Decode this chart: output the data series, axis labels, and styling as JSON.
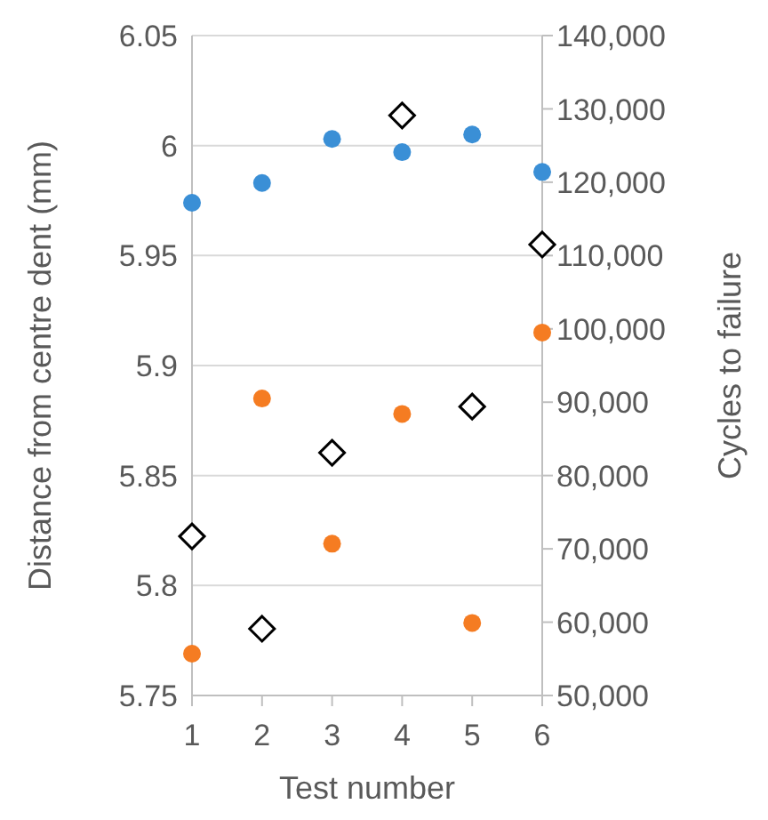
{
  "chart_data": {
    "type": "scatter",
    "xlabel": "Test number",
    "ylabel": "Distance from centre dent (mm)",
    "y2label": "Cycles to failure",
    "x": [
      1,
      2,
      3,
      4,
      5,
      6
    ],
    "series": [
      {
        "color": "#3a8fd6",
        "marker": "circle",
        "values": [
          5.974,
          5.983,
          6.003,
          5.997,
          6.005,
          5.988
        ]
      },
      {
        "color": "#f57c22",
        "marker": "circle",
        "values": [
          5.769,
          5.885,
          5.819,
          5.878,
          5.783,
          5.915
        ]
      },
      {
        "color": "#000000",
        "marker": "diamond",
        "axis": "y2",
        "values": [
          71700,
          59100,
          83100,
          129100,
          89400,
          111500
        ]
      }
    ],
    "xlim": [
      1,
      6
    ],
    "xticks": [
      1,
      2,
      3,
      4,
      5,
      6
    ],
    "ylim": [
      5.75,
      6.05
    ],
    "yticks": [
      5.75,
      5.8,
      5.85,
      5.9,
      5.95,
      6,
      6.05
    ],
    "y2lim": [
      50000,
      140000
    ],
    "y2ticks": [
      {
        "value": 50000,
        "label": "50,000"
      },
      {
        "value": 60000,
        "label": "60,000"
      },
      {
        "value": 70000,
        "label": "70,000"
      },
      {
        "value": 80000,
        "label": "80,000"
      },
      {
        "value": 90000,
        "label": "90,000"
      },
      {
        "value": 100000,
        "label": "100,000"
      },
      {
        "value": 110000,
        "label": "110,000"
      },
      {
        "value": 120000,
        "label": "120,000"
      },
      {
        "value": 130000,
        "label": "130,000"
      },
      {
        "value": 140000,
        "label": "140,000"
      }
    ],
    "grid": "y",
    "legend": false
  }
}
